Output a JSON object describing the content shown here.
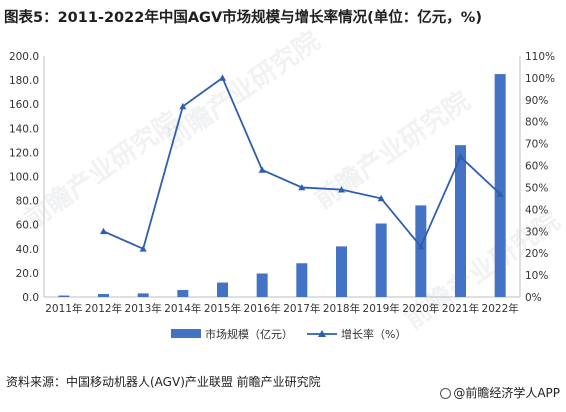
{
  "title": "图表5：2011-2022年中国AGV市场规模与增长率情况(单位：亿元，%)",
  "source": "资料来源：中国移动机器人(AGV)产业联盟 前瞻产业研究院",
  "brand": "@前瞻经济学人APP",
  "watermark": "前瞻产业研究院",
  "colors": {
    "bar": "#4472c4",
    "line": "#2e5fae",
    "axis": "#bfbfbf"
  },
  "chart_data": {
    "type": "bar",
    "categories": [
      "2011年",
      "2012年",
      "2013年",
      "2014年",
      "2015年",
      "2016年",
      "2017年",
      "2018年",
      "2019年",
      "2020年",
      "2021年",
      "2022年"
    ],
    "series": [
      {
        "name": "市场规模（亿元）",
        "type": "bar",
        "axis": "left",
        "values": [
          1.2,
          2.5,
          3.0,
          5.8,
          12.0,
          19.5,
          28.0,
          42.0,
          61.0,
          76.0,
          126.0,
          185.0
        ]
      },
      {
        "name": "增长率（%）",
        "type": "line",
        "axis": "right",
        "values": [
          null,
          30,
          22,
          87,
          100,
          58,
          50,
          49,
          45,
          23,
          64,
          47
        ]
      }
    ],
    "y_left": {
      "min": 0,
      "max": 200,
      "step": 20,
      "ticks": [
        "0.0",
        "20.0",
        "40.0",
        "60.0",
        "80.0",
        "100.0",
        "120.0",
        "140.0",
        "160.0",
        "180.0",
        "200.0"
      ]
    },
    "y_right": {
      "min": 0,
      "max": 110,
      "step": 10,
      "ticks": [
        "0%",
        "10%",
        "20%",
        "30%",
        "40%",
        "50%",
        "60%",
        "70%",
        "80%",
        "90%",
        "100%",
        "110%"
      ]
    },
    "legend": [
      "市场规模（亿元）",
      "增长率（%）"
    ],
    "legend_position": "bottom",
    "grid": false
  }
}
